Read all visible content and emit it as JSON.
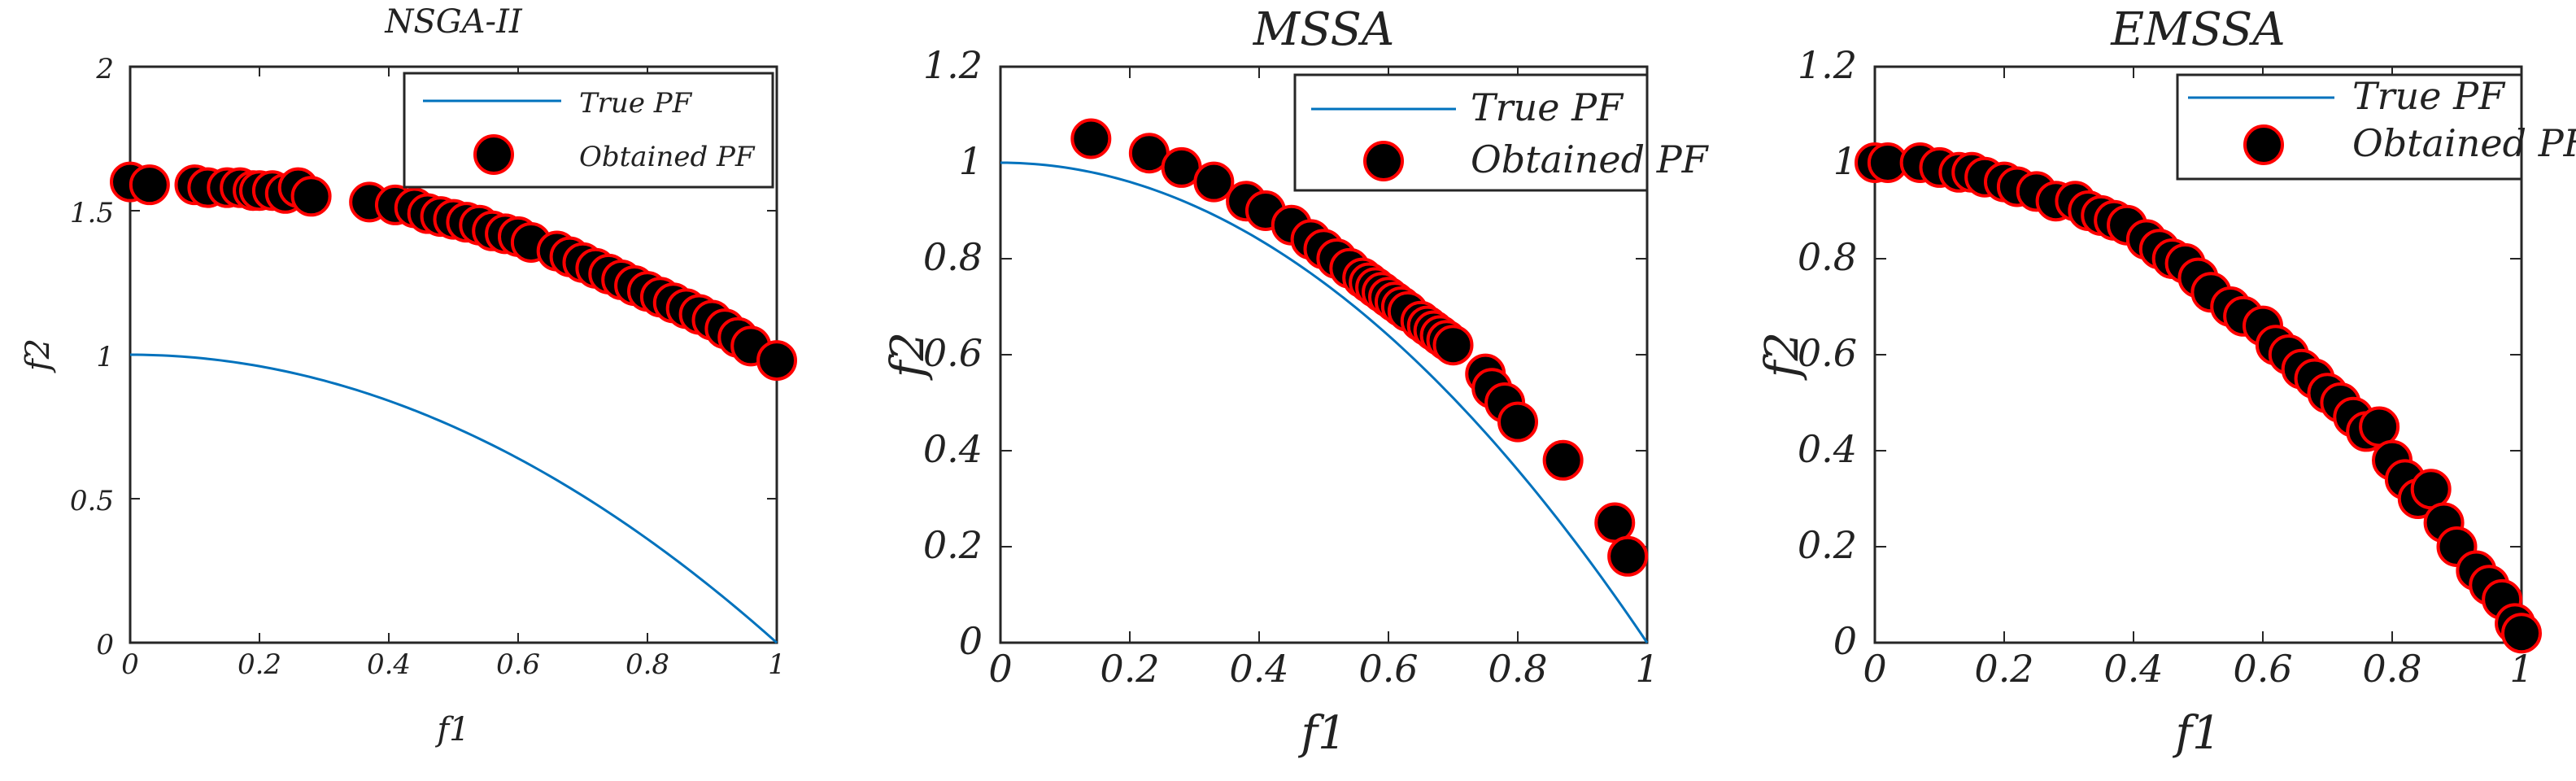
{
  "chart_data": [
    {
      "type": "scatter",
      "title": "NSGA-II",
      "xlabel": "f1",
      "ylabel": "f2",
      "xlim": [
        0,
        1
      ],
      "ylim": [
        0,
        2
      ],
      "xticks": [
        "0",
        "0.2",
        "0.4",
        "0.6",
        "0.8",
        "1"
      ],
      "yticks": [
        "0",
        "0.5",
        "1",
        "1.5",
        "2"
      ],
      "legend": {
        "position": "top-right",
        "entries": [
          "True PF",
          "Obtained PF"
        ]
      },
      "series": [
        {
          "name": "True PF",
          "kind": "line",
          "formula": "f2 = 1 - f1^2"
        },
        {
          "name": "Obtained PF",
          "kind": "points",
          "x": [
            0.0,
            0.03,
            0.1,
            0.12,
            0.15,
            0.17,
            0.19,
            0.2,
            0.22,
            0.24,
            0.26,
            0.28,
            0.37,
            0.41,
            0.44,
            0.46,
            0.48,
            0.5,
            0.52,
            0.54,
            0.56,
            0.58,
            0.6,
            0.62,
            0.66,
            0.68,
            0.7,
            0.72,
            0.74,
            0.76,
            0.78,
            0.8,
            0.82,
            0.84,
            0.86,
            0.88,
            0.9,
            0.92,
            0.94,
            0.96,
            1.0
          ],
          "y": [
            1.6,
            1.59,
            1.59,
            1.58,
            1.58,
            1.58,
            1.57,
            1.57,
            1.57,
            1.56,
            1.58,
            1.55,
            1.53,
            1.52,
            1.51,
            1.49,
            1.48,
            1.47,
            1.46,
            1.45,
            1.43,
            1.42,
            1.41,
            1.39,
            1.36,
            1.34,
            1.32,
            1.3,
            1.28,
            1.26,
            1.24,
            1.22,
            1.2,
            1.18,
            1.16,
            1.14,
            1.12,
            1.09,
            1.06,
            1.03,
            0.98
          ]
        }
      ]
    },
    {
      "type": "scatter",
      "title": "MSSA",
      "xlabel": "f1",
      "ylabel": "f2",
      "xlim": [
        0,
        1
      ],
      "ylim": [
        0,
        1.2
      ],
      "xticks": [
        "0",
        "0.2",
        "0.4",
        "0.6",
        "0.8",
        "1"
      ],
      "yticks": [
        "0",
        "0.2",
        "0.4",
        "0.6",
        "0.8",
        "1",
        "1.2"
      ],
      "legend": {
        "position": "top-right",
        "entries": [
          "True PF",
          "Obtained PF"
        ]
      },
      "series": [
        {
          "name": "True PF",
          "kind": "line",
          "formula": "f2 = 1 - f1^2"
        },
        {
          "name": "Obtained PF",
          "kind": "points",
          "x": [
            0.14,
            0.23,
            0.28,
            0.33,
            0.38,
            0.41,
            0.45,
            0.48,
            0.5,
            0.52,
            0.54,
            0.56,
            0.57,
            0.58,
            0.59,
            0.6,
            0.61,
            0.62,
            0.63,
            0.65,
            0.66,
            0.67,
            0.68,
            0.69,
            0.7,
            0.75,
            0.76,
            0.78,
            0.8,
            0.87,
            0.95,
            0.97
          ],
          "y": [
            1.05,
            1.02,
            0.99,
            0.96,
            0.92,
            0.9,
            0.87,
            0.84,
            0.82,
            0.8,
            0.78,
            0.76,
            0.75,
            0.74,
            0.73,
            0.72,
            0.71,
            0.7,
            0.69,
            0.67,
            0.66,
            0.65,
            0.64,
            0.63,
            0.62,
            0.56,
            0.53,
            0.5,
            0.46,
            0.38,
            0.25,
            0.18
          ]
        }
      ]
    },
    {
      "type": "scatter",
      "title": "EMSSA",
      "xlabel": "f1",
      "ylabel": "f2",
      "xlim": [
        0,
        1
      ],
      "ylim": [
        0,
        1.2
      ],
      "xticks": [
        "0",
        "0.2",
        "0.4",
        "0.6",
        "0.8",
        "1"
      ],
      "yticks": [
        "0",
        "0.2",
        "0.4",
        "0.6",
        "0.8",
        "1",
        "1.2"
      ],
      "legend": {
        "position": "top-right",
        "entries": [
          "True PF",
          "Obtained PF"
        ]
      },
      "series": [
        {
          "name": "True PF",
          "kind": "line",
          "formula": "f2 = 1 - f1^2"
        },
        {
          "name": "Obtained PF",
          "kind": "points",
          "x": [
            0.0,
            0.02,
            0.07,
            0.1,
            0.13,
            0.15,
            0.17,
            0.2,
            0.22,
            0.25,
            0.28,
            0.31,
            0.33,
            0.35,
            0.37,
            0.39,
            0.42,
            0.44,
            0.46,
            0.48,
            0.5,
            0.52,
            0.55,
            0.57,
            0.6,
            0.62,
            0.64,
            0.66,
            0.68,
            0.7,
            0.72,
            0.74,
            0.76,
            0.78,
            0.8,
            0.82,
            0.84,
            0.86,
            0.88,
            0.9,
            0.93,
            0.95,
            0.97,
            0.99,
            1.0
          ],
          "y": [
            1.0,
            1.0,
            1.0,
            0.99,
            0.98,
            0.98,
            0.97,
            0.96,
            0.95,
            0.94,
            0.92,
            0.92,
            0.9,
            0.89,
            0.88,
            0.87,
            0.84,
            0.82,
            0.8,
            0.79,
            0.76,
            0.73,
            0.7,
            0.68,
            0.66,
            0.62,
            0.6,
            0.57,
            0.55,
            0.52,
            0.5,
            0.47,
            0.44,
            0.45,
            0.38,
            0.34,
            0.3,
            0.32,
            0.25,
            0.2,
            0.15,
            0.12,
            0.09,
            0.04,
            0.02
          ]
        }
      ]
    }
  ]
}
